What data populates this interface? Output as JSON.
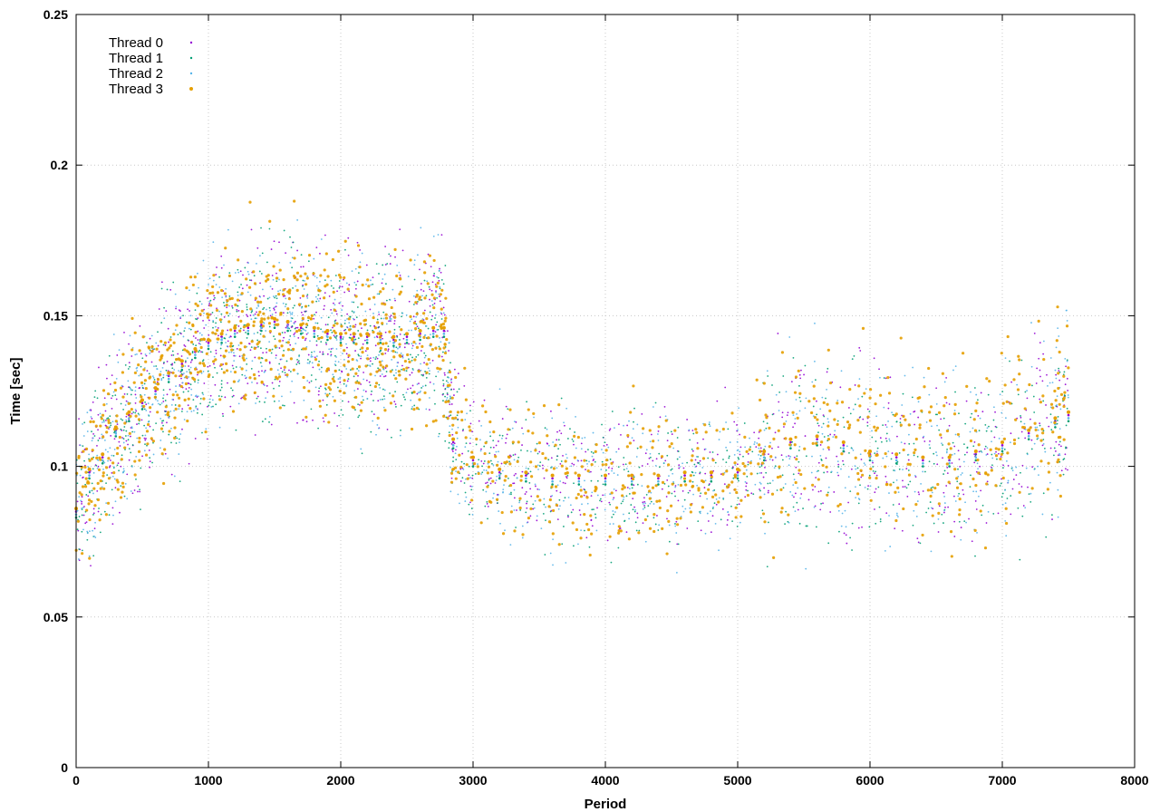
{
  "chart_data": {
    "type": "scatter",
    "title": "",
    "xlabel": "Period",
    "ylabel": "Time [sec]",
    "xlim": [
      0,
      8000
    ],
    "ylim": [
      0,
      0.25
    ],
    "x_ticks": [
      0,
      1000,
      2000,
      3000,
      4000,
      5000,
      6000,
      7000,
      8000
    ],
    "x_tick_labels": [
      "0",
      "1000",
      "2000",
      "3000",
      "4000",
      "5000",
      "6000",
      "7000",
      "8000"
    ],
    "y_ticks": [
      0,
      0.05,
      0.1,
      0.15,
      0.2,
      0.25
    ],
    "y_tick_labels": [
      "0",
      "0.05",
      "0.1",
      "0.15",
      "0.2",
      "0.25"
    ],
    "grid": true,
    "legend_position": "top-left",
    "series": [
      {
        "name": "Thread 0",
        "color": "#9400d3",
        "marker": "dot",
        "points": [
          [
            0,
            0.085
          ],
          [
            100,
            0.098
          ],
          [
            200,
            0.103
          ],
          [
            300,
            0.112
          ],
          [
            400,
            0.117
          ],
          [
            500,
            0.121
          ],
          [
            600,
            0.125
          ],
          [
            700,
            0.13
          ],
          [
            800,
            0.134
          ],
          [
            900,
            0.138
          ],
          [
            1000,
            0.141
          ],
          [
            1100,
            0.143
          ],
          [
            1200,
            0.145
          ],
          [
            1300,
            0.146
          ],
          [
            1400,
            0.147
          ],
          [
            1500,
            0.148
          ],
          [
            1600,
            0.147
          ],
          [
            1700,
            0.146
          ],
          [
            1800,
            0.145
          ],
          [
            1900,
            0.144
          ],
          [
            2000,
            0.143
          ],
          [
            2100,
            0.143
          ],
          [
            2200,
            0.143
          ],
          [
            2300,
            0.143
          ],
          [
            2400,
            0.142
          ],
          [
            2500,
            0.143
          ],
          [
            2600,
            0.144
          ],
          [
            2700,
            0.145
          ],
          [
            2780,
            0.145
          ],
          [
            2850,
            0.108
          ],
          [
            3000,
            0.102
          ],
          [
            3200,
            0.098
          ],
          [
            3400,
            0.097
          ],
          [
            3600,
            0.096
          ],
          [
            3800,
            0.096
          ],
          [
            4000,
            0.096
          ],
          [
            4200,
            0.096
          ],
          [
            4400,
            0.096
          ],
          [
            4600,
            0.097
          ],
          [
            4800,
            0.097
          ],
          [
            5000,
            0.098
          ],
          [
            5200,
            0.104
          ],
          [
            5400,
            0.108
          ],
          [
            5600,
            0.109
          ],
          [
            5800,
            0.107
          ],
          [
            6000,
            0.104
          ],
          [
            6200,
            0.103
          ],
          [
            6400,
            0.102
          ],
          [
            6600,
            0.102
          ],
          [
            6800,
            0.104
          ],
          [
            7000,
            0.107
          ],
          [
            7200,
            0.111
          ],
          [
            7400,
            0.115
          ],
          [
            7500,
            0.117
          ]
        ]
      },
      {
        "name": "Thread 1",
        "color": "#009e73",
        "marker": "dot",
        "points": [
          [
            0,
            0.083
          ],
          [
            100,
            0.096
          ],
          [
            200,
            0.101
          ],
          [
            300,
            0.11
          ],
          [
            400,
            0.115
          ],
          [
            500,
            0.119
          ],
          [
            600,
            0.123
          ],
          [
            700,
            0.128
          ],
          [
            800,
            0.132
          ],
          [
            900,
            0.136
          ],
          [
            1000,
            0.139
          ],
          [
            1100,
            0.141
          ],
          [
            1200,
            0.143
          ],
          [
            1300,
            0.144
          ],
          [
            1400,
            0.145
          ],
          [
            1500,
            0.146
          ],
          [
            1600,
            0.145
          ],
          [
            1700,
            0.144
          ],
          [
            1800,
            0.143
          ],
          [
            1900,
            0.142
          ],
          [
            2000,
            0.141
          ],
          [
            2100,
            0.141
          ],
          [
            2200,
            0.141
          ],
          [
            2300,
            0.141
          ],
          [
            2400,
            0.14
          ],
          [
            2500,
            0.141
          ],
          [
            2600,
            0.142
          ],
          [
            2700,
            0.143
          ],
          [
            2780,
            0.143
          ],
          [
            2850,
            0.106
          ],
          [
            3000,
            0.1
          ],
          [
            3200,
            0.096
          ],
          [
            3400,
            0.095
          ],
          [
            3600,
            0.094
          ],
          [
            3800,
            0.094
          ],
          [
            4000,
            0.094
          ],
          [
            4200,
            0.094
          ],
          [
            4400,
            0.094
          ],
          [
            4600,
            0.095
          ],
          [
            4800,
            0.095
          ],
          [
            5000,
            0.096
          ],
          [
            5200,
            0.102
          ],
          [
            5400,
            0.106
          ],
          [
            5600,
            0.107
          ],
          [
            5800,
            0.105
          ],
          [
            6000,
            0.102
          ],
          [
            6200,
            0.101
          ],
          [
            6400,
            0.1
          ],
          [
            6600,
            0.1
          ],
          [
            6800,
            0.102
          ],
          [
            7000,
            0.105
          ],
          [
            7200,
            0.109
          ],
          [
            7400,
            0.113
          ],
          [
            7500,
            0.115
          ]
        ]
      },
      {
        "name": "Thread 2",
        "color": "#56b4e9",
        "marker": "dot",
        "points": [
          [
            0,
            0.084
          ],
          [
            100,
            0.097
          ],
          [
            200,
            0.102
          ],
          [
            300,
            0.111
          ],
          [
            400,
            0.116
          ],
          [
            500,
            0.12
          ],
          [
            600,
            0.124
          ],
          [
            700,
            0.129
          ],
          [
            800,
            0.133
          ],
          [
            900,
            0.137
          ],
          [
            1000,
            0.14
          ],
          [
            1100,
            0.142
          ],
          [
            1200,
            0.144
          ],
          [
            1300,
            0.145
          ],
          [
            1400,
            0.146
          ],
          [
            1500,
            0.147
          ],
          [
            1600,
            0.146
          ],
          [
            1700,
            0.145
          ],
          [
            1800,
            0.144
          ],
          [
            1900,
            0.143
          ],
          [
            2000,
            0.142
          ],
          [
            2100,
            0.142
          ],
          [
            2200,
            0.142
          ],
          [
            2300,
            0.142
          ],
          [
            2400,
            0.141
          ],
          [
            2500,
            0.142
          ],
          [
            2600,
            0.143
          ],
          [
            2700,
            0.144
          ],
          [
            2780,
            0.144
          ],
          [
            2850,
            0.107
          ],
          [
            3000,
            0.101
          ],
          [
            3200,
            0.097
          ],
          [
            3400,
            0.096
          ],
          [
            3600,
            0.095
          ],
          [
            3800,
            0.095
          ],
          [
            4000,
            0.095
          ],
          [
            4200,
            0.095
          ],
          [
            4400,
            0.095
          ],
          [
            4600,
            0.096
          ],
          [
            4800,
            0.096
          ],
          [
            5000,
            0.097
          ],
          [
            5200,
            0.103
          ],
          [
            5400,
            0.107
          ],
          [
            5600,
            0.108
          ],
          [
            5800,
            0.106
          ],
          [
            6000,
            0.103
          ],
          [
            6200,
            0.102
          ],
          [
            6400,
            0.101
          ],
          [
            6600,
            0.101
          ],
          [
            6800,
            0.103
          ],
          [
            7000,
            0.106
          ],
          [
            7200,
            0.11
          ],
          [
            7400,
            0.114
          ],
          [
            7500,
            0.116
          ]
        ]
      },
      {
        "name": "Thread 3",
        "color": "#e69f00",
        "marker": "dot",
        "points": [
          [
            0,
            0.086
          ],
          [
            100,
            0.099
          ],
          [
            200,
            0.104
          ],
          [
            300,
            0.113
          ],
          [
            400,
            0.118
          ],
          [
            500,
            0.122
          ],
          [
            600,
            0.126
          ],
          [
            700,
            0.131
          ],
          [
            800,
            0.135
          ],
          [
            900,
            0.139
          ],
          [
            1000,
            0.142
          ],
          [
            1100,
            0.144
          ],
          [
            1200,
            0.146
          ],
          [
            1300,
            0.147
          ],
          [
            1400,
            0.148
          ],
          [
            1500,
            0.149
          ],
          [
            1600,
            0.148
          ],
          [
            1700,
            0.147
          ],
          [
            1800,
            0.146
          ],
          [
            1900,
            0.145
          ],
          [
            2000,
            0.144
          ],
          [
            2100,
            0.144
          ],
          [
            2200,
            0.144
          ],
          [
            2300,
            0.144
          ],
          [
            2400,
            0.143
          ],
          [
            2500,
            0.144
          ],
          [
            2600,
            0.145
          ],
          [
            2700,
            0.146
          ],
          [
            2780,
            0.146
          ],
          [
            2850,
            0.109
          ],
          [
            3000,
            0.103
          ],
          [
            3200,
            0.099
          ],
          [
            3400,
            0.098
          ],
          [
            3600,
            0.097
          ],
          [
            3800,
            0.097
          ],
          [
            4000,
            0.097
          ],
          [
            4200,
            0.097
          ],
          [
            4400,
            0.097
          ],
          [
            4600,
            0.098
          ],
          [
            4800,
            0.098
          ],
          [
            5000,
            0.099
          ],
          [
            5200,
            0.105
          ],
          [
            5400,
            0.109
          ],
          [
            5600,
            0.11
          ],
          [
            5800,
            0.108
          ],
          [
            6000,
            0.105
          ],
          [
            6200,
            0.104
          ],
          [
            6400,
            0.103
          ],
          [
            6600,
            0.103
          ],
          [
            6800,
            0.105
          ],
          [
            7000,
            0.108
          ],
          [
            7200,
            0.112
          ],
          [
            7400,
            0.116
          ],
          [
            7500,
            0.118
          ]
        ]
      }
    ]
  }
}
